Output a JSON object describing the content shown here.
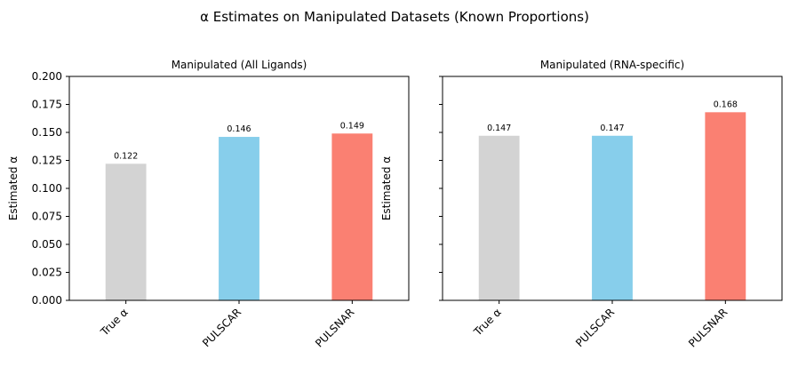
{
  "figure": {
    "title": "α Estimates on Manipulated Datasets (Known Proportions)"
  },
  "chart_data": [
    {
      "type": "bar",
      "title": "Manipulated (All Ligands)",
      "categories": [
        "True α",
        "PULSCAR",
        "PULSNAR"
      ],
      "values": [
        0.122,
        0.146,
        0.149
      ],
      "data_labels": [
        "0.122",
        "0.146",
        "0.149"
      ],
      "colors": [
        "#d3d3d3",
        "#87ceeb",
        "#fa8072"
      ],
      "xlabel": "",
      "ylabel": "Estimated α",
      "ylim": [
        0,
        0.2
      ],
      "yticks": [
        "0.000",
        "0.025",
        "0.050",
        "0.075",
        "0.100",
        "0.125",
        "0.150",
        "0.175",
        "0.200"
      ],
      "show_ytick_labels": true,
      "grid": false
    },
    {
      "type": "bar",
      "title": "Manipulated (RNA-specific)",
      "categories": [
        "True α",
        "PULSCAR",
        "PULSNAR"
      ],
      "values": [
        0.147,
        0.147,
        0.168
      ],
      "data_labels": [
        "0.147",
        "0.147",
        "0.168"
      ],
      "colors": [
        "#d3d3d3",
        "#87ceeb",
        "#fa8072"
      ],
      "xlabel": "",
      "ylabel": "Estimated α",
      "ylim": [
        0,
        0.2
      ],
      "yticks": [
        "0.000",
        "0.025",
        "0.050",
        "0.075",
        "0.100",
        "0.125",
        "0.150",
        "0.175",
        "0.200"
      ],
      "show_ytick_labels": false,
      "grid": false
    }
  ]
}
